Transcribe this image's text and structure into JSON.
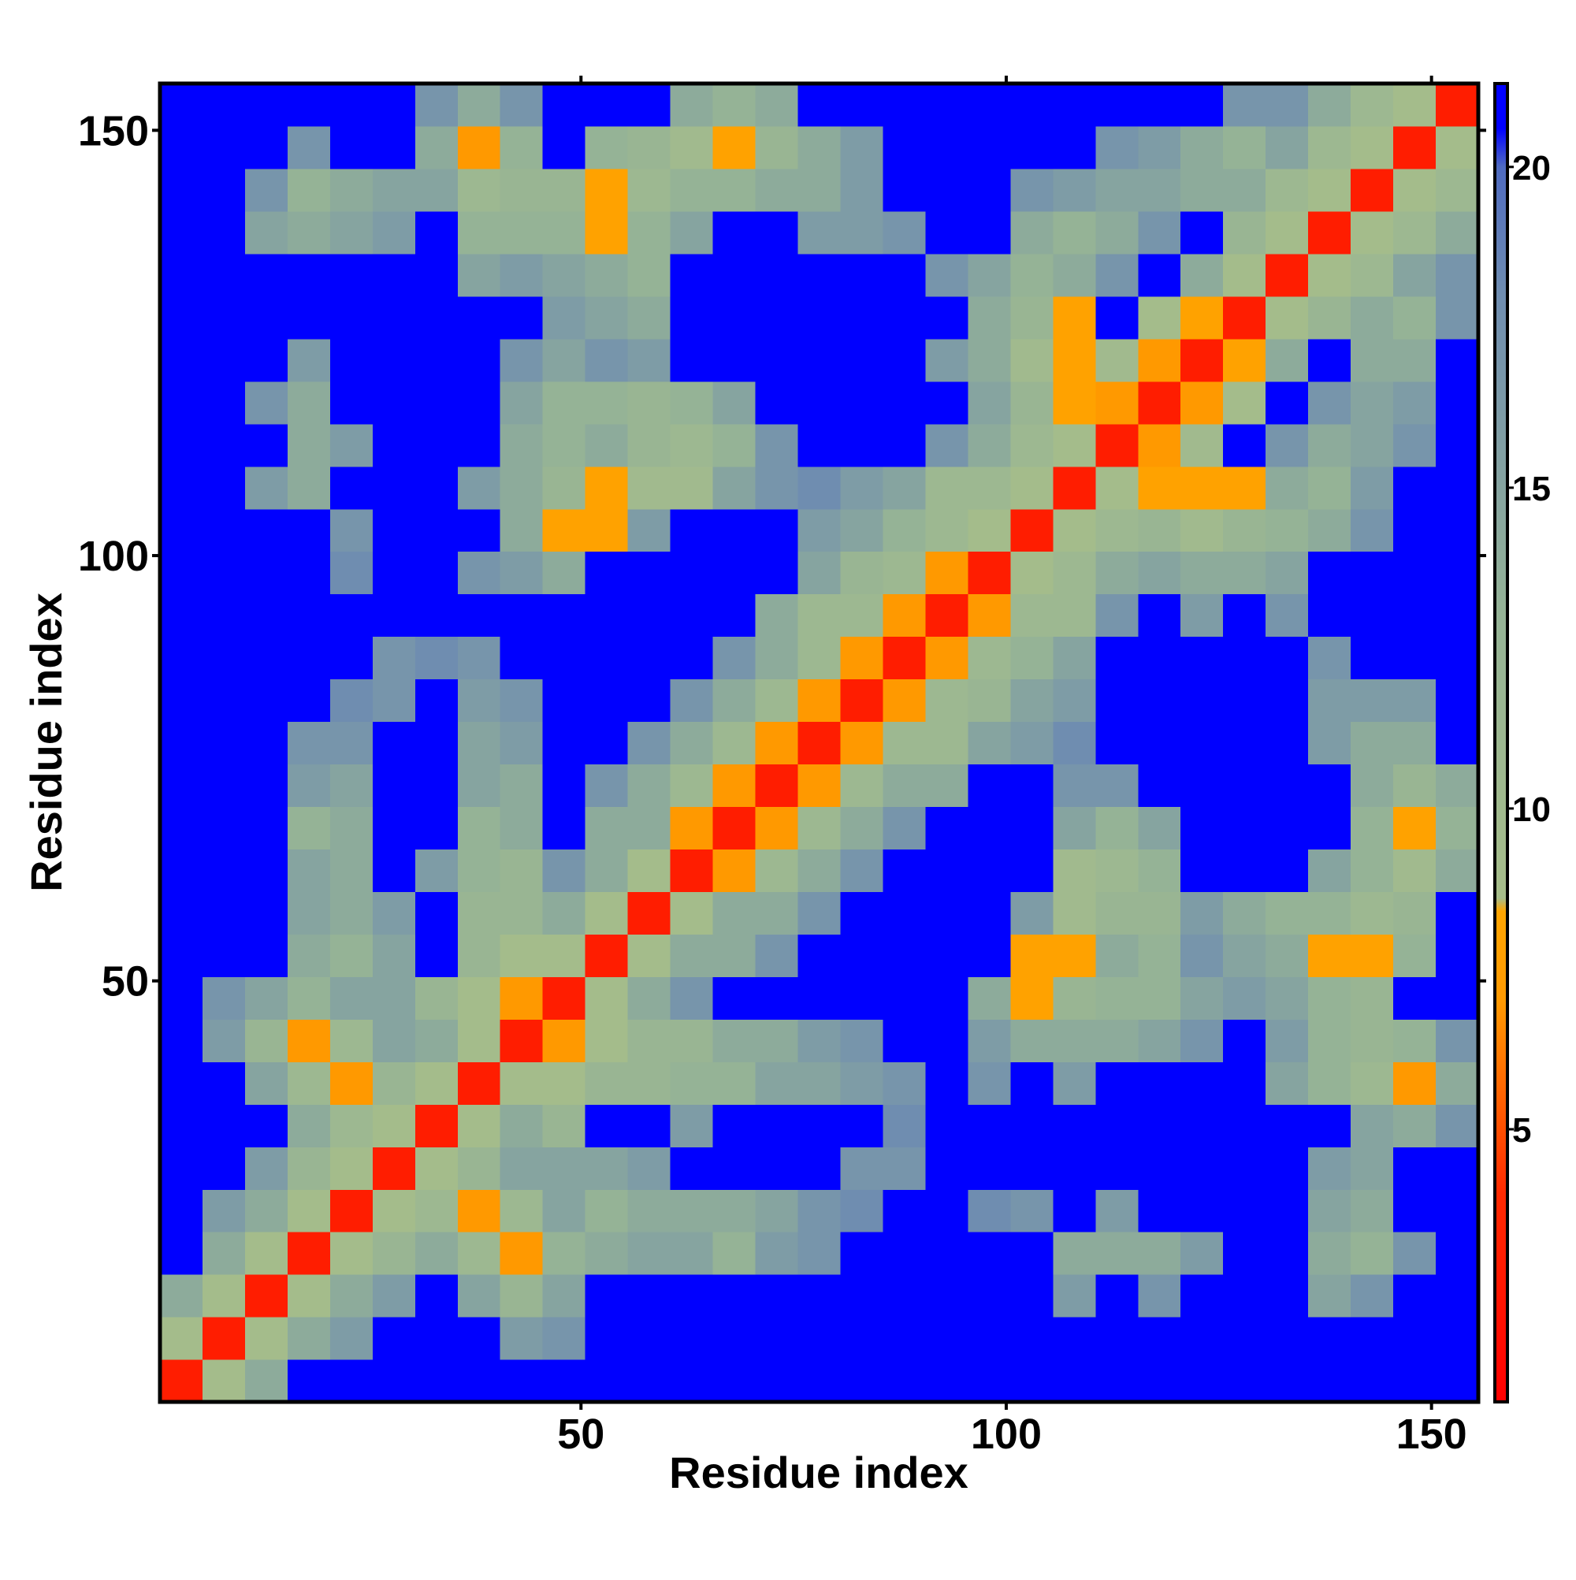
{
  "chart_data": {
    "type": "heatmap",
    "x_label": "Residue index",
    "y_label": "Residue index",
    "x_bins": [
      0.5,
      5.5,
      10.5,
      15.5,
      20.5,
      25.5,
      30.5,
      35.5,
      40.5,
      45.5,
      50.5,
      55.5,
      60.5,
      65.5,
      70.5,
      75.5,
      80.5,
      85.5,
      90.5,
      95.5,
      100.5,
      105.5,
      110.5,
      115.5,
      120.5,
      125.5,
      130.5,
      135.5,
      140.5,
      145.5,
      150.5,
      155.5
    ],
    "y_bins": [
      0.5,
      5.5,
      10.5,
      15.5,
      20.5,
      25.5,
      30.5,
      35.5,
      40.5,
      45.5,
      50.5,
      55.5,
      60.5,
      65.5,
      70.5,
      75.5,
      80.5,
      85.5,
      90.5,
      95.5,
      100.5,
      105.5,
      110.5,
      115.5,
      120.5,
      125.5,
      130.5,
      135.5,
      140.5,
      145.5,
      150.5,
      155.5
    ],
    "xlim": [
      0.5,
      155.5
    ],
    "ylim": [
      0.5,
      155.5
    ],
    "xticks": [
      50,
      100,
      150
    ],
    "yticks": [
      50,
      100,
      150
    ],
    "clim": [
      0.75,
      21.3
    ],
    "cticks": [
      5,
      10,
      15,
      20
    ],
    "colorscale": [
      [
        0.75,
        "#ff0000"
      ],
      [
        4,
        "#ff2a00"
      ],
      [
        7,
        "#ff9900"
      ],
      [
        8.4,
        "#ffa500"
      ],
      [
        8.6,
        "#a6bd8a"
      ],
      [
        13,
        "#95b396"
      ],
      [
        18,
        "#6f8db0"
      ],
      [
        20,
        "#4f6bc0"
      ],
      [
        20.6,
        "#0000ff"
      ],
      [
        21.3,
        "#0000ff"
      ]
    ],
    "values": [
      [
        3,
        9,
        14,
        21,
        21,
        21,
        21,
        21,
        21,
        21,
        21,
        21,
        21,
        21,
        21,
        21,
        21,
        21,
        21,
        21,
        21,
        21,
        21,
        21,
        21,
        21,
        21,
        21,
        21,
        21,
        21
      ],
      [
        9,
        3,
        9,
        14,
        16,
        21,
        21,
        21,
        16,
        17,
        21,
        21,
        21,
        21,
        21,
        21,
        21,
        21,
        21,
        21,
        21,
        21,
        21,
        21,
        21,
        21,
        21,
        21,
        21,
        21,
        21
      ],
      [
        14,
        9,
        3,
        9,
        14,
        16,
        21,
        15,
        12,
        15,
        21,
        21,
        21,
        21,
        21,
        21,
        21,
        21,
        21,
        21,
        21,
        16,
        21,
        17,
        21,
        21,
        21,
        15,
        17,
        21,
        21
      ],
      [
        21,
        14,
        9,
        3,
        9,
        12,
        14,
        11,
        7,
        13,
        14,
        15,
        15,
        13,
        16,
        17,
        21,
        21,
        21,
        21,
        21,
        14,
        14,
        14,
        16,
        21,
        21,
        14,
        13,
        17,
        21
      ],
      [
        21,
        16,
        14,
        9,
        3,
        9,
        11,
        7,
        11,
        15,
        13,
        14,
        14,
        14,
        15,
        17,
        18,
        21,
        21,
        18,
        17,
        21,
        16,
        21,
        21,
        21,
        21,
        15,
        14,
        21,
        21
      ],
      [
        21,
        21,
        16,
        12,
        9,
        3,
        9,
        12,
        15,
        15,
        15,
        16,
        21,
        21,
        21,
        21,
        17,
        17,
        21,
        21,
        21,
        21,
        21,
        21,
        21,
        21,
        21,
        16,
        15,
        21,
        21
      ],
      [
        21,
        21,
        21,
        14,
        11,
        9,
        3,
        9,
        14,
        12,
        21,
        21,
        16,
        21,
        21,
        21,
        21,
        18,
        21,
        21,
        21,
        21,
        21,
        21,
        21,
        21,
        21,
        21,
        15,
        14,
        17
      ],
      [
        21,
        21,
        15,
        11,
        7,
        12,
        9,
        3,
        9,
        9,
        12,
        12,
        13,
        13,
        15,
        15,
        16,
        17,
        21,
        17,
        21,
        16,
        21,
        21,
        21,
        21,
        15,
        13,
        11,
        7,
        14
      ],
      [
        21,
        16,
        12,
        7,
        11,
        15,
        14,
        9,
        3,
        7,
        9,
        12,
        12,
        14,
        14,
        16,
        17,
        21,
        21,
        16,
        14,
        14,
        14,
        15,
        17,
        21,
        16,
        13,
        12,
        13,
        17
      ],
      [
        21,
        17,
        15,
        13,
        15,
        15,
        12,
        9,
        7,
        3,
        9,
        14,
        17,
        21,
        21,
        21,
        21,
        21,
        21,
        14,
        8,
        12,
        13,
        13,
        15,
        16,
        15,
        13,
        12,
        21,
        21
      ],
      [
        21,
        21,
        21,
        14,
        13,
        15,
        21,
        12,
        9,
        9,
        3,
        9,
        14,
        14,
        17,
        21,
        21,
        21,
        21,
        21,
        8,
        8,
        14,
        13,
        17,
        15,
        14,
        8,
        8,
        13,
        21
      ],
      [
        21,
        21,
        21,
        15,
        14,
        16,
        21,
        12,
        12,
        14,
        9,
        3,
        9,
        14,
        14,
        17,
        21,
        21,
        21,
        21,
        16,
        10,
        12,
        12,
        16,
        14,
        13,
        13,
        11,
        12,
        21
      ],
      [
        21,
        21,
        21,
        15,
        14,
        21,
        16,
        13,
        12,
        17,
        14,
        9,
        3,
        7,
        11,
        14,
        17,
        21,
        21,
        21,
        21,
        10,
        11,
        13,
        21,
        21,
        21,
        15,
        13,
        10,
        14
      ],
      [
        21,
        21,
        21,
        13,
        14,
        21,
        21,
        13,
        14,
        21,
        14,
        14,
        7,
        3,
        7,
        11,
        14,
        17,
        21,
        21,
        21,
        15,
        13,
        15,
        21,
        21,
        21,
        21,
        13,
        8,
        13
      ],
      [
        21,
        21,
        21,
        16,
        15,
        21,
        21,
        15,
        14,
        21,
        17,
        14,
        11,
        7,
        3,
        7,
        11,
        14,
        14,
        21,
        21,
        17,
        17,
        21,
        21,
        21,
        21,
        21,
        14,
        12,
        14
      ],
      [
        21,
        21,
        21,
        17,
        17,
        21,
        21,
        15,
        16,
        21,
        21,
        17,
        14,
        11,
        7,
        3,
        7,
        11,
        11,
        15,
        16,
        18,
        21,
        21,
        21,
        21,
        21,
        16,
        14,
        14,
        21
      ],
      [
        21,
        21,
        21,
        21,
        18,
        17,
        21,
        16,
        17,
        21,
        21,
        21,
        17,
        14,
        11,
        7,
        3,
        7,
        11,
        12,
        15,
        16,
        21,
        21,
        21,
        21,
        21,
        16,
        16,
        16,
        21
      ],
      [
        21,
        21,
        21,
        21,
        21,
        17,
        18,
        17,
        21,
        21,
        21,
        21,
        21,
        17,
        14,
        11,
        7,
        3,
        7,
        11,
        13,
        15,
        21,
        21,
        21,
        21,
        21,
        17,
        21,
        21,
        21
      ],
      [
        21,
        21,
        21,
        21,
        21,
        21,
        21,
        21,
        21,
        21,
        21,
        21,
        21,
        21,
        14,
        11,
        11,
        7,
        3,
        7,
        11,
        11,
        17,
        21,
        16,
        21,
        17,
        21,
        21,
        21,
        21
      ],
      [
        21,
        21,
        21,
        21,
        18,
        21,
        21,
        17,
        16,
        14,
        21,
        21,
        21,
        21,
        21,
        15,
        12,
        11,
        7,
        3,
        9,
        11,
        14,
        15,
        14,
        14,
        15,
        21,
        21,
        21,
        21
      ],
      [
        21,
        21,
        21,
        21,
        17,
        21,
        21,
        21,
        14,
        8,
        8,
        16,
        21,
        21,
        21,
        16,
        15,
        13,
        11,
        9,
        3,
        9,
        11,
        12,
        10,
        12,
        13,
        14,
        17,
        21,
        21
      ],
      [
        21,
        21,
        16,
        14,
        21,
        21,
        21,
        16,
        14,
        12,
        8,
        10,
        10,
        15,
        17,
        18,
        16,
        15,
        11,
        11,
        9,
        3,
        9,
        8,
        8,
        8,
        14,
        13,
        16,
        21,
        21
      ],
      [
        21,
        21,
        21,
        14,
        16,
        21,
        21,
        21,
        14,
        13,
        14,
        12,
        11,
        13,
        17,
        21,
        21,
        21,
        17,
        14,
        11,
        9,
        3,
        7,
        10,
        21,
        17,
        14,
        15,
        17,
        21
      ],
      [
        21,
        21,
        17,
        14,
        21,
        21,
        21,
        21,
        15,
        13,
        13,
        12,
        13,
        15,
        21,
        21,
        21,
        21,
        21,
        15,
        12,
        8,
        7,
        3,
        7,
        9,
        21,
        17,
        15,
        16,
        21
      ],
      [
        21,
        21,
        21,
        16,
        21,
        21,
        21,
        21,
        17,
        15,
        17,
        16,
        21,
        21,
        21,
        21,
        21,
        21,
        16,
        14,
        10,
        8,
        10,
        7,
        3,
        8,
        14,
        21,
        14,
        14,
        21
      ],
      [
        21,
        21,
        21,
        21,
        21,
        21,
        21,
        21,
        21,
        16,
        15,
        14,
        21,
        21,
        21,
        21,
        21,
        21,
        21,
        14,
        12,
        8,
        21,
        9,
        8,
        3,
        9,
        12,
        14,
        13,
        17
      ],
      [
        21,
        21,
        21,
        21,
        21,
        21,
        21,
        15,
        16,
        15,
        14,
        13,
        21,
        21,
        21,
        21,
        21,
        21,
        17,
        15,
        13,
        14,
        17,
        21,
        14,
        9,
        3,
        9,
        11,
        15,
        17
      ],
      [
        21,
        21,
        15,
        14,
        15,
        16,
        21,
        13,
        13,
        13,
        8,
        13,
        15,
        21,
        21,
        16,
        16,
        17,
        21,
        21,
        14,
        13,
        14,
        17,
        21,
        12,
        9,
        3,
        9,
        11,
        14
      ],
      [
        21,
        21,
        17,
        13,
        14,
        15,
        15,
        11,
        12,
        12,
        8,
        11,
        13,
        13,
        14,
        14,
        16,
        21,
        21,
        21,
        17,
        16,
        15,
        15,
        14,
        14,
        11,
        9,
        3,
        9,
        11
      ],
      [
        21,
        21,
        21,
        17,
        21,
        21,
        14,
        7,
        13,
        21,
        13,
        12,
        10,
        8,
        12,
        14,
        16,
        21,
        21,
        21,
        21,
        21,
        17,
        16,
        14,
        13,
        15,
        11,
        9,
        3,
        9
      ],
      [
        21,
        21,
        21,
        21,
        21,
        21,
        17,
        14,
        17,
        21,
        21,
        21,
        14,
        13,
        14,
        21,
        21,
        21,
        21,
        21,
        21,
        21,
        21,
        21,
        21,
        17,
        17,
        14,
        11,
        9,
        3
      ]
    ]
  }
}
